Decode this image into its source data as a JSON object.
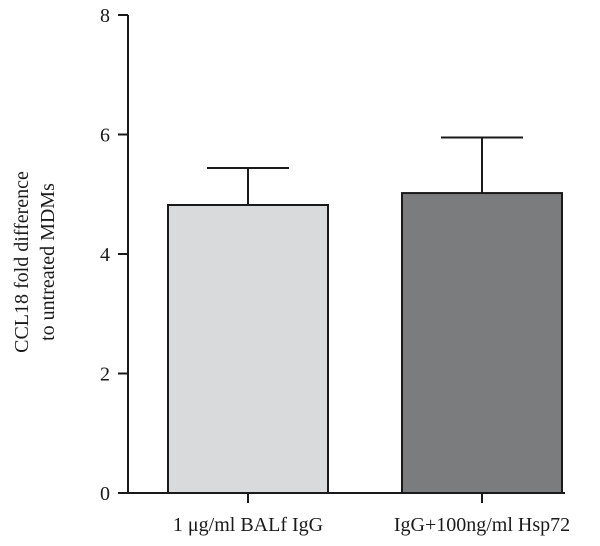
{
  "chart_data": {
    "type": "bar",
    "title": "",
    "xlabel": "",
    "ylabel_lines": [
      "CCL18 fold difference",
      "to untreated MDMs"
    ],
    "categories": [
      "1 μg/ml BALf IgG",
      "IgG+100ng/ml Hsp72"
    ],
    "values": [
      4.82,
      5.02
    ],
    "error_upper": [
      0.62,
      0.93
    ],
    "ylim": [
      0,
      8
    ],
    "yticks": [
      0,
      2,
      4,
      6,
      8
    ],
    "ytick_labels": [
      "0",
      "2",
      "4",
      "6",
      "8"
    ],
    "grid": false,
    "legend": "none",
    "bar_colors": [
      "#d9dadb",
      "#7a7c7e"
    ],
    "bar_edge_color": "#1a1a1a"
  }
}
